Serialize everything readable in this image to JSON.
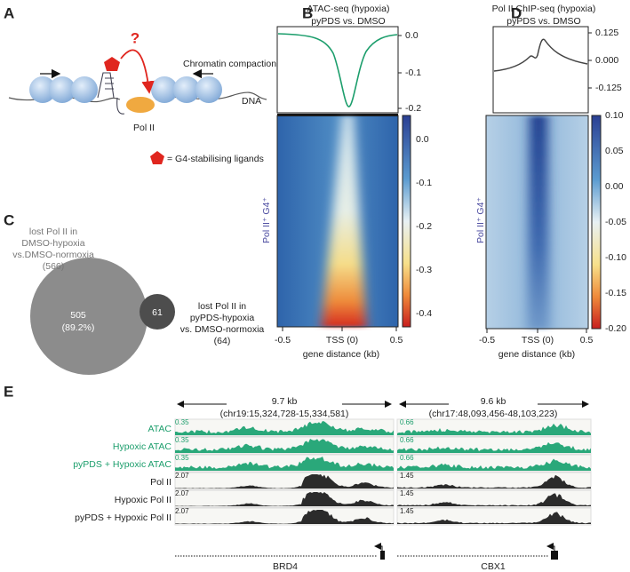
{
  "panel_a": {
    "label": "A",
    "question_mark": "?",
    "chromatin_compaction": "Chromatin compaction",
    "dna": "DNA",
    "pol_ii": "Pol II",
    "legend": "= G4-stabilising ligands"
  },
  "panel_b": {
    "label": "B",
    "title": "ATAC-seq (hypoxia)",
    "subtitle": "pyPDS vs. DMSO",
    "profile_ticks": [
      "0.0",
      "-0.1",
      "-0.2"
    ],
    "colorbar_ticks": [
      "0.0",
      "-0.1",
      "-0.2",
      "-0.3",
      "-0.4"
    ],
    "ylabel": "Pol II⁺ G4⁺",
    "xticks": [
      "-0.5",
      "TSS (0)",
      "0.5"
    ],
    "xlabel": "gene distance (kb)"
  },
  "panel_c": {
    "label": "C",
    "left_set": [
      "lost Pol II in",
      "DMSO-hypoxia",
      "vs.DMSO-normoxia",
      "(566)"
    ],
    "left_only": [
      "505",
      "(89.2%)"
    ],
    "overlap": "61",
    "right_set": [
      "lost Pol II in",
      "pyPDS-hypoxia",
      "vs. DMSO-normoxia",
      "(64)"
    ]
  },
  "panel_d": {
    "label": "D",
    "title": "Pol II ChIP-seq (hypoxia)",
    "subtitle": "pyPDS vs. DMSO",
    "profile_ticks": [
      "0.125",
      "0.000",
      "-0.125"
    ],
    "colorbar_ticks": [
      "0.10",
      "0.05",
      "0.00",
      "-0.05",
      "-0.10",
      "-0.15",
      "-0.20"
    ],
    "ylabel": "Pol II⁺ G4⁺",
    "xticks": [
      "-0.5",
      "TSS (0)",
      "0.5"
    ],
    "xlabel": "gene distance (kb)"
  },
  "panel_e": {
    "label": "E",
    "track_labels": [
      "ATAC",
      "Hypoxic ATAC",
      "pyPDS + Hypoxic ATAC",
      "Pol II",
      "Hypoxic Pol II",
      "pyPDS + Hypoxic Pol II"
    ],
    "loci": [
      {
        "size": "9.7 kb",
        "coords": "(chr19:15,324,728-15,334,581)",
        "scales": [
          "0.35",
          "0.35",
          "0.35",
          "2.07",
          "2.07",
          "2.07"
        ],
        "gene": "BRD4"
      },
      {
        "size": "9.6 kb",
        "coords": "(chr17:48,093,456-48,103,223)",
        "scales": [
          "0.66",
          "0.66",
          "0.66",
          "1.45",
          "1.45",
          "1.45"
        ],
        "gene": "CBX1"
      }
    ]
  }
}
